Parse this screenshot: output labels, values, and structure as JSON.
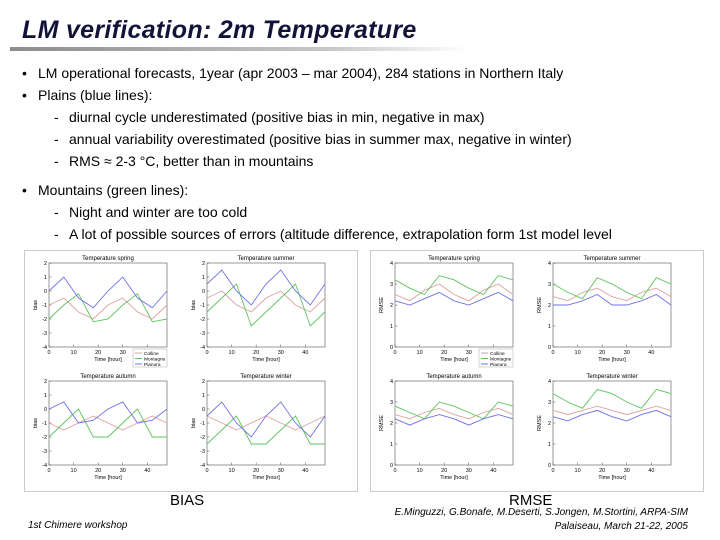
{
  "slide": {
    "title": "LM verification: 2m Temperature",
    "bullets": [
      {
        "text": "LM operational forecasts, 1year (apr 2003 – mar 2004), 284 stations in Northern Italy",
        "subs": []
      },
      {
        "text": "Plains (blue lines):",
        "subs": [
          "diurnal cycle underestimated (positive bias in min, negative in max)",
          "annual variability overestimated (positive bias in summer max, negative in winter)",
          "RMS ≈ 2-3 °C, better than in mountains"
        ]
      },
      {
        "text": "Mountains (green lines):",
        "subs": [
          "Night and winter are  too cold",
          "A lot of possible sources of errors (altitude difference, extrapolation form 1st model level"
        ]
      }
    ],
    "figure_labels": {
      "bias": "BIAS",
      "rmse": "RMSE"
    },
    "footer_left": "1st Chimere workshop",
    "footer_right_line1": "E.Minguzzi, G.Bonafe, M.Deserti, S.Jongen, M.Stortini, ARPA-SIM",
    "footer_right_line2": "Palaiseau, March 21-22, 2005"
  },
  "chart_data": [
    {
      "type": "line",
      "panels": [
        {
          "title": "Temperature spring",
          "ylabel": "bias",
          "ylim": [
            -4,
            2
          ]
        },
        {
          "title": "Temperature summer",
          "ylabel": "bias",
          "ylim": [
            -4,
            2
          ]
        },
        {
          "title": "Temperature autumn",
          "ylabel": "bias",
          "ylim": [
            -4,
            2
          ]
        },
        {
          "title": "Temperature winter",
          "ylabel": "bias",
          "ylim": [
            -4,
            2
          ]
        }
      ],
      "xlabel": "Time [hour]",
      "x_ticks": [
        0,
        10,
        20,
        30,
        40
      ],
      "xlim": [
        0,
        48
      ],
      "y_ticks": [
        2,
        1,
        0,
        -1,
        -2,
        -3,
        -4
      ],
      "legend": [
        "Colline",
        "Montagne",
        "Pianura"
      ],
      "legend_position": "lower-right",
      "series_colors": [
        "#e0a0a0",
        "#5cc45c",
        "#7070e6"
      ],
      "series": [
        {
          "panel": 0,
          "name": "Colline",
          "x": [
            0,
            6,
            12,
            18,
            24,
            30,
            36,
            42,
            48
          ],
          "y": [
            -1.0,
            -0.5,
            -1.5,
            -2.0,
            -1.0,
            -0.5,
            -1.5,
            -2.0,
            -1.0
          ]
        },
        {
          "panel": 0,
          "name": "Montagne",
          "x": [
            0,
            6,
            12,
            18,
            24,
            30,
            36,
            42,
            48
          ],
          "y": [
            -2.0,
            -1.0,
            -0.2,
            -2.2,
            -2.0,
            -1.0,
            -0.2,
            -2.2,
            -2.0
          ]
        },
        {
          "panel": 0,
          "name": "Pianura",
          "x": [
            0,
            6,
            12,
            18,
            24,
            30,
            36,
            42,
            48
          ],
          "y": [
            0.0,
            1.0,
            -0.5,
            -1.2,
            0.0,
            1.0,
            -0.5,
            -1.2,
            0.0
          ]
        },
        {
          "panel": 1,
          "name": "Colline",
          "x": [
            0,
            6,
            12,
            18,
            24,
            30,
            36,
            42,
            48
          ],
          "y": [
            -0.5,
            0.0,
            -1.0,
            -1.5,
            -0.5,
            0.0,
            -1.0,
            -1.5,
            -0.5
          ]
        },
        {
          "panel": 1,
          "name": "Montagne",
          "x": [
            0,
            6,
            12,
            18,
            24,
            30,
            36,
            42,
            48
          ],
          "y": [
            -1.5,
            -0.5,
            0.5,
            -2.5,
            -1.5,
            -0.5,
            0.5,
            -2.5,
            -1.5
          ]
        },
        {
          "panel": 1,
          "name": "Pianura",
          "x": [
            0,
            6,
            12,
            18,
            24,
            30,
            36,
            42,
            48
          ],
          "y": [
            0.5,
            1.5,
            0.0,
            -1.0,
            0.5,
            1.5,
            0.0,
            -1.0,
            0.5
          ]
        },
        {
          "panel": 2,
          "name": "Colline",
          "x": [
            0,
            6,
            12,
            18,
            24,
            30,
            36,
            42,
            48
          ],
          "y": [
            -1.0,
            -1.5,
            -1.0,
            -0.5,
            -1.0,
            -1.5,
            -1.0,
            -0.5,
            -1.0
          ]
        },
        {
          "panel": 2,
          "name": "Montagne",
          "x": [
            0,
            6,
            12,
            18,
            24,
            30,
            36,
            42,
            48
          ],
          "y": [
            -2.0,
            -1.0,
            0.0,
            -2.0,
            -2.0,
            -1.0,
            0.0,
            -2.0,
            -2.0
          ]
        },
        {
          "panel": 2,
          "name": "Pianura",
          "x": [
            0,
            6,
            12,
            18,
            24,
            30,
            36,
            42,
            48
          ],
          "y": [
            0.0,
            0.5,
            -1.0,
            -0.8,
            0.0,
            0.5,
            -1.0,
            -0.8,
            0.0
          ]
        },
        {
          "panel": 3,
          "name": "Colline",
          "x": [
            0,
            6,
            12,
            18,
            24,
            30,
            36,
            42,
            48
          ],
          "y": [
            -0.5,
            -1.0,
            -1.5,
            -1.0,
            -0.5,
            -1.0,
            -1.5,
            -1.0,
            -0.5
          ]
        },
        {
          "panel": 3,
          "name": "Montagne",
          "x": [
            0,
            6,
            12,
            18,
            24,
            30,
            36,
            42,
            48
          ],
          "y": [
            -2.5,
            -1.5,
            -0.5,
            -2.5,
            -2.5,
            -1.5,
            -0.5,
            -2.5,
            -2.5
          ]
        },
        {
          "panel": 3,
          "name": "Pianura",
          "x": [
            0,
            6,
            12,
            18,
            24,
            30,
            36,
            42,
            48
          ],
          "y": [
            -0.5,
            0.5,
            -1.0,
            -2.0,
            -0.5,
            0.5,
            -1.0,
            -2.0,
            -0.5
          ]
        }
      ]
    },
    {
      "type": "line",
      "panels": [
        {
          "title": "Temperature spring",
          "ylabel": "RMSE",
          "ylim": [
            0,
            4
          ]
        },
        {
          "title": "Temperature summer",
          "ylabel": "RMSE",
          "ylim": [
            0,
            4
          ]
        },
        {
          "title": "Temperature autumn",
          "ylabel": "RMSE",
          "ylim": [
            0,
            4
          ]
        },
        {
          "title": "Temperature winter",
          "ylabel": "RMSE",
          "ylim": [
            0,
            4
          ]
        }
      ],
      "xlabel": "Time [hour]",
      "x_ticks": [
        0,
        10,
        20,
        30,
        40
      ],
      "xlim": [
        0,
        48
      ],
      "y_ticks": [
        4,
        3,
        2,
        1,
        0
      ],
      "legend": [
        "Colline",
        "Montagne",
        "Pianura"
      ],
      "legend_position": "lower-right",
      "series_colors": [
        "#e0a0a0",
        "#5cc45c",
        "#7070e6"
      ],
      "series": [
        {
          "panel": 0,
          "name": "Colline",
          "x": [
            0,
            6,
            12,
            18,
            24,
            30,
            36,
            42,
            48
          ],
          "y": [
            2.5,
            2.2,
            2.7,
            3.0,
            2.5,
            2.2,
            2.7,
            3.0,
            2.5
          ]
        },
        {
          "panel": 0,
          "name": "Montagne",
          "x": [
            0,
            6,
            12,
            18,
            24,
            30,
            36,
            42,
            48
          ],
          "y": [
            3.2,
            2.8,
            2.5,
            3.4,
            3.2,
            2.8,
            2.5,
            3.4,
            3.2
          ]
        },
        {
          "panel": 0,
          "name": "Pianura",
          "x": [
            0,
            6,
            12,
            18,
            24,
            30,
            36,
            42,
            48
          ],
          "y": [
            2.2,
            2.0,
            2.3,
            2.6,
            2.2,
            2.0,
            2.3,
            2.6,
            2.2
          ]
        },
        {
          "panel": 1,
          "name": "Colline",
          "x": [
            0,
            6,
            12,
            18,
            24,
            30,
            36,
            42,
            48
          ],
          "y": [
            2.4,
            2.2,
            2.6,
            2.8,
            2.4,
            2.2,
            2.6,
            2.8,
            2.4
          ]
        },
        {
          "panel": 1,
          "name": "Montagne",
          "x": [
            0,
            6,
            12,
            18,
            24,
            30,
            36,
            42,
            48
          ],
          "y": [
            3.0,
            2.6,
            2.3,
            3.3,
            3.0,
            2.6,
            2.3,
            3.3,
            3.0
          ]
        },
        {
          "panel": 1,
          "name": "Pianura",
          "x": [
            0,
            6,
            12,
            18,
            24,
            30,
            36,
            42,
            48
          ],
          "y": [
            2.0,
            2.0,
            2.2,
            2.5,
            2.0,
            2.0,
            2.2,
            2.5,
            2.0
          ]
        },
        {
          "panel": 2,
          "name": "Colline",
          "x": [
            0,
            6,
            12,
            18,
            24,
            30,
            36,
            42,
            48
          ],
          "y": [
            2.4,
            2.2,
            2.5,
            2.7,
            2.4,
            2.2,
            2.5,
            2.7,
            2.4
          ]
        },
        {
          "panel": 2,
          "name": "Montagne",
          "x": [
            0,
            6,
            12,
            18,
            24,
            30,
            36,
            42,
            48
          ],
          "y": [
            2.8,
            2.5,
            2.2,
            3.0,
            2.8,
            2.5,
            2.2,
            3.0,
            2.8
          ]
        },
        {
          "panel": 2,
          "name": "Pianura",
          "x": [
            0,
            6,
            12,
            18,
            24,
            30,
            36,
            42,
            48
          ],
          "y": [
            2.2,
            1.9,
            2.2,
            2.4,
            2.2,
            1.9,
            2.2,
            2.4,
            2.2
          ]
        },
        {
          "panel": 3,
          "name": "Colline",
          "x": [
            0,
            6,
            12,
            18,
            24,
            30,
            36,
            42,
            48
          ],
          "y": [
            2.6,
            2.4,
            2.6,
            2.8,
            2.6,
            2.4,
            2.6,
            2.8,
            2.6
          ]
        },
        {
          "panel": 3,
          "name": "Montagne",
          "x": [
            0,
            6,
            12,
            18,
            24,
            30,
            36,
            42,
            48
          ],
          "y": [
            3.4,
            3.0,
            2.7,
            3.6,
            3.4,
            3.0,
            2.7,
            3.6,
            3.4
          ]
        },
        {
          "panel": 3,
          "name": "Pianura",
          "x": [
            0,
            6,
            12,
            18,
            24,
            30,
            36,
            42,
            48
          ],
          "y": [
            2.3,
            2.1,
            2.4,
            2.6,
            2.3,
            2.1,
            2.4,
            2.6,
            2.3
          ]
        }
      ]
    }
  ]
}
